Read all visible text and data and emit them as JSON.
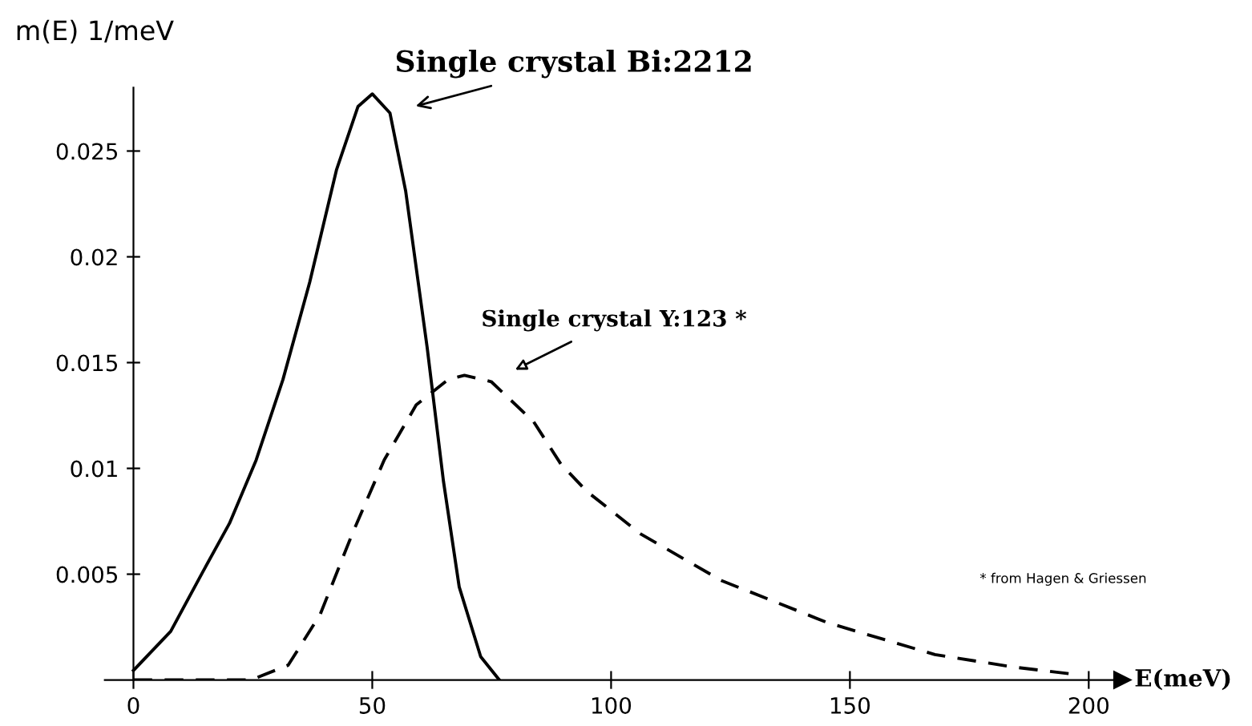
{
  "chart_data": {
    "type": "line",
    "xlabel": "E(meV)",
    "ylabel": "m(E) 1/meV",
    "xlim": [
      -6,
      207
    ],
    "ylim": [
      0,
      0.028
    ],
    "xticks": [
      0,
      50,
      100,
      150,
      200
    ],
    "yticks": [
      0.005,
      0.01,
      0.015,
      0.02,
      0.025
    ],
    "grid": false,
    "legend": false,
    "marker": "none",
    "series": [
      {
        "color": "#000000",
        "line_style": "solid",
        "x": [
          0,
          7.8,
          14.5,
          20.1,
          25.7,
          31.3,
          36.9,
          42.5,
          47.0,
          50,
          53.7,
          57.0,
          61.5,
          64.9,
          68.2,
          72.7,
          76.6
        ],
        "values": [
          0.00045,
          0.0023,
          0.0051,
          0.0074,
          0.0104,
          0.0142,
          0.0188,
          0.0241,
          0.0271,
          0.0277,
          0.0268,
          0.0231,
          0.0157,
          0.0094,
          0.0044,
          0.0011,
          0
        ]
      },
      {
        "color": "#000000",
        "line_style": "dashed",
        "x": [
          0,
          24.6,
          32.4,
          39.1,
          45.8,
          52.5,
          59.2,
          65.9,
          69.3,
          74.9,
          83.8,
          89.5,
          95,
          106.2,
          123.1,
          145.4,
          167.8,
          184.6,
          195.8
        ],
        "values": [
          0,
          0,
          0.0007,
          0.0031,
          0.0069,
          0.0104,
          0.013,
          0.0142,
          0.0144,
          0.0141,
          0.0122,
          0.0102,
          0.0089,
          0.0069,
          0.0047,
          0.0027,
          0.0012,
          0.0006,
          0.0003
        ]
      }
    ],
    "annotations": [
      {
        "text": "Single crystal Bi:2212",
        "x": 53.7,
        "y": 0.0268
      },
      {
        "text": "Single crystal Y:123 *",
        "x": 74.9,
        "y": 0.0141
      },
      "* from Hagen & Griessen"
    ]
  }
}
